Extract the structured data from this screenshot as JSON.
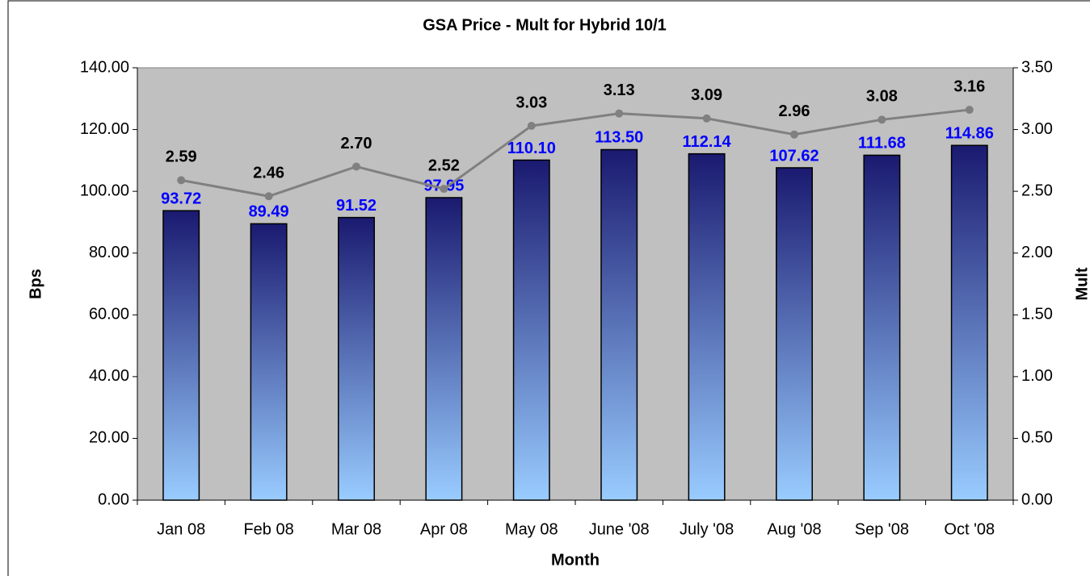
{
  "chart_data": {
    "type": "bar",
    "title": "GSA Price - Mult for Hybrid 10/1",
    "x_label": "Month",
    "y_label": "Bps",
    "y2_label": "Mult",
    "categories": [
      "Jan 08",
      "Feb 08",
      "Mar 08",
      "Apr 08",
      "May 08",
      "June '08",
      "July '08",
      "Aug '08",
      "Sep '08",
      "Oct '08"
    ],
    "series": [
      {
        "name": "Bps",
        "type": "bar",
        "color": "#1a1a70",
        "color_bottom": "#99ccff",
        "values": [
          93.72,
          89.49,
          91.52,
          97.95,
          110.1,
          113.5,
          112.14,
          107.62,
          111.68,
          114.86
        ],
        "value_labels": [
          "93.72",
          "89.49",
          "91.52",
          "97.95",
          "110.10",
          "113.50",
          "112.14",
          "107.62",
          "111.68",
          "114.86"
        ],
        "label_color": "#0000ff"
      },
      {
        "name": "Mult",
        "type": "line",
        "axis": "y2",
        "color": "#808080",
        "values": [
          2.59,
          2.46,
          2.7,
          2.52,
          3.03,
          3.13,
          3.09,
          2.96,
          3.08,
          3.16
        ],
        "value_labels": [
          "2.59",
          "2.46",
          "2.70",
          "2.52",
          "3.03",
          "3.13",
          "3.09",
          "2.96",
          "3.08",
          "3.16"
        ],
        "label_color": "#000000"
      }
    ],
    "ylim": [
      0,
      140
    ],
    "yticks": [
      {
        "value": 0,
        "label": "0.00"
      },
      {
        "value": 20,
        "label": "20.00"
      },
      {
        "value": 40,
        "label": "40.00"
      },
      {
        "value": 60,
        "label": "60.00"
      },
      {
        "value": 80,
        "label": "80.00"
      },
      {
        "value": 100,
        "label": "100.00"
      },
      {
        "value": 120,
        "label": "120.00"
      },
      {
        "value": 140,
        "label": "140.00"
      }
    ],
    "y2lim": [
      0,
      3.5
    ],
    "y2ticks": [
      {
        "value": 0,
        "label": "0.00"
      },
      {
        "value": 0.5,
        "label": "0.50"
      },
      {
        "value": 1,
        "label": "1.00"
      },
      {
        "value": 1.5,
        "label": "1.50"
      },
      {
        "value": 2,
        "label": "2.00"
      },
      {
        "value": 2.5,
        "label": "2.50"
      },
      {
        "value": 3,
        "label": "3.00"
      },
      {
        "value": 3.5,
        "label": "3.50"
      }
    ],
    "plot_background": "#c0c0c0",
    "legend": false
  }
}
